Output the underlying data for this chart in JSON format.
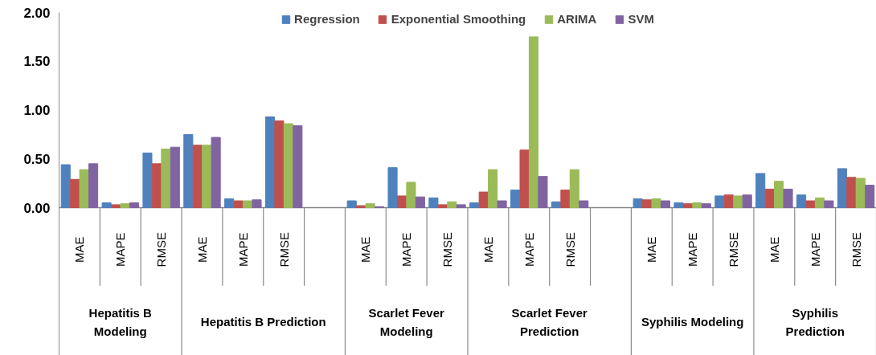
{
  "chart_data": {
    "type": "bar",
    "categories": [
      "MAE",
      "MAPE",
      "RMSE",
      "MAE",
      "MAPE",
      "RMSE",
      null,
      "MAE",
      "MAPE",
      "RMSE",
      "MAE",
      "MAPE",
      "RMSE",
      null,
      "MAE",
      "MAPE",
      "RMSE",
      "MAE",
      "MAPE",
      "RMSE"
    ],
    "series": [
      {
        "name": "Regression",
        "color": "#4f81bd",
        "values": [
          0.44,
          0.05,
          0.56,
          0.75,
          0.09,
          0.93,
          null,
          0.07,
          0.41,
          0.1,
          0.05,
          0.18,
          0.06,
          null,
          0.09,
          0.05,
          0.12,
          0.35,
          0.13,
          0.4
        ]
      },
      {
        "name": "Exponential Smoothing",
        "color": "#c0504d",
        "values": [
          0.29,
          0.03,
          0.45,
          0.64,
          0.07,
          0.89,
          null,
          0.02,
          0.12,
          0.03,
          0.16,
          0.59,
          0.18,
          null,
          0.08,
          0.04,
          0.13,
          0.19,
          0.07,
          0.31
        ]
      },
      {
        "name": "ARIMA",
        "color": "#9bbb59",
        "values": [
          0.39,
          0.04,
          0.6,
          0.64,
          0.07,
          0.86,
          null,
          0.04,
          0.26,
          0.06,
          0.39,
          1.75,
          0.39,
          null,
          0.09,
          0.05,
          0.12,
          0.27,
          0.1,
          0.3
        ]
      },
      {
        "name": "SVM",
        "color": "#8064a2",
        "values": [
          0.45,
          0.05,
          0.62,
          0.72,
          0.08,
          0.84,
          null,
          0.01,
          0.11,
          0.03,
          0.07,
          0.32,
          0.07,
          null,
          0.07,
          0.04,
          0.13,
          0.19,
          0.07,
          0.23
        ]
      }
    ],
    "annotations": [
      "Hepatitis B Modeling",
      "Hepatitis B Prediction",
      "Scarlet Fever Modeling",
      "Scarlet Fever Prediction",
      "Syphilis Modeling",
      "Syphilis Prediction"
    ],
    "ylim": [
      0,
      2
    ],
    "yticks": [
      {
        "value": 0,
        "label": "0.00"
      },
      {
        "value": 0.5,
        "label": "0.50"
      },
      {
        "value": 1,
        "label": "1.00"
      },
      {
        "value": 1.5,
        "label": "1.50"
      },
      {
        "value": 2,
        "label": "2.00"
      }
    ],
    "legend": "top",
    "grid": false
  }
}
